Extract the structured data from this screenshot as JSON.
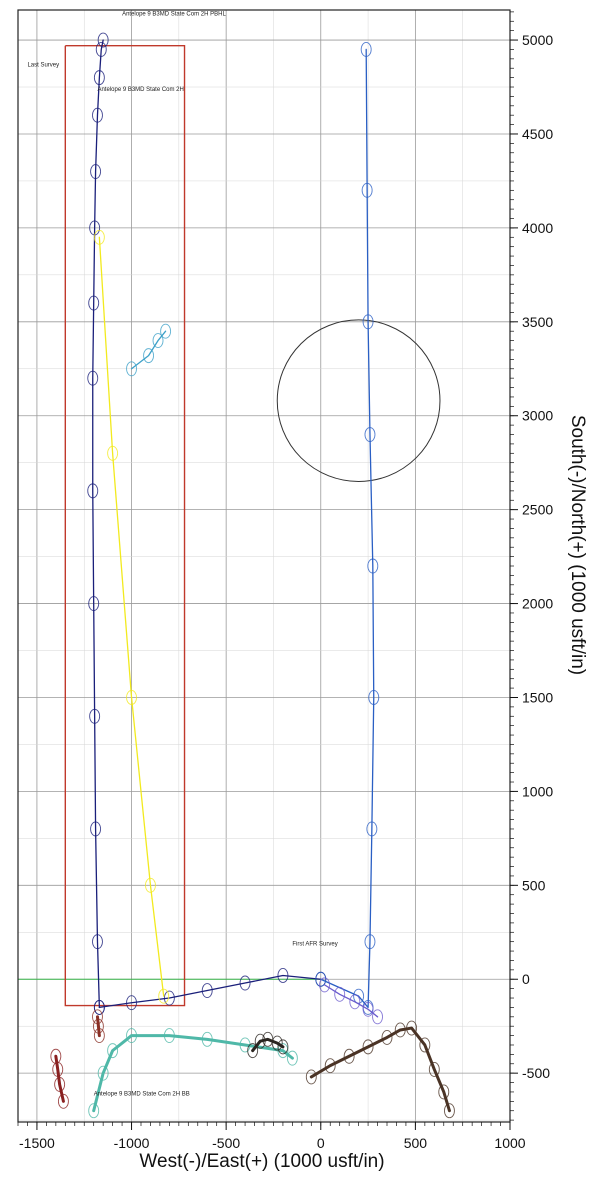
{
  "chart_data": {
    "type": "line",
    "xlabel": "West(-)/East(+) (1000 usft/in)",
    "ylabel": "South(-)/North(+) (1000 usft/in)",
    "xlim": [
      -1600,
      1000
    ],
    "ylim": [
      -760,
      5160
    ],
    "x_ticks": [
      "-1500",
      "-1000",
      "-500",
      "0",
      "500",
      "1000"
    ],
    "x_tick_values": [
      -1500,
      -1000,
      -500,
      0,
      500,
      1000
    ],
    "y_ticks": [
      "5000",
      "4500",
      "4000",
      "3500",
      "3000",
      "2500",
      "2000",
      "1500",
      "1000",
      "500",
      "0",
      "-500"
    ],
    "y_tick_values": [
      5000,
      4500,
      4000,
      3500,
      3000,
      2500,
      2000,
      1500,
      1000,
      500,
      0,
      -500
    ],
    "grid": true,
    "annotations": [
      {
        "text": "Antelope 9 B3MD State Com 2H PBHL",
        "x": -1050,
        "y": 5130
      },
      {
        "text": "Last Survey",
        "x": -1550,
        "y": 4860
      },
      {
        "text": "Antelope 9 B3MD State Com 2H",
        "x": -1180,
        "y": 4730
      },
      {
        "text": "First AFR Survey",
        "x": -150,
        "y": 180
      },
      {
        "text": "Antelope 9 B3MD State Com 2H BB",
        "x": -1200,
        "y": -620
      }
    ],
    "series": [
      {
        "name": "Antelope 9 B3MD State Com 2H",
        "color": "#1a1f7a",
        "x": [
          -1170,
          -1180,
          -1190,
          -1195,
          -1200,
          -1205,
          -1205,
          -1200,
          -1195,
          -1190,
          -1180,
          -1170,
          -1160,
          -1150
        ],
        "y": [
          -150,
          200,
          800,
          1400,
          2000,
          2600,
          3200,
          3600,
          4000,
          4300,
          4600,
          4800,
          4950,
          5000
        ]
      },
      {
        "color": "#1a1f7a",
        "x": [
          -1170,
          -1000,
          -800,
          -600,
          -400,
          -200,
          0
        ],
        "y": [
          -150,
          -125,
          -100,
          -60,
          -20,
          20,
          0
        ]
      },
      {
        "color": "#f2ea1e",
        "x": [
          -1170,
          -1100,
          -1000,
          -900,
          -830
        ],
        "y": [
          3950,
          2800,
          1500,
          500,
          -90
        ]
      },
      {
        "color": "#3ca0c8",
        "x": [
          -1000,
          -910,
          -860,
          -820
        ],
        "y": [
          3250,
          3320,
          3400,
          3450
        ]
      },
      {
        "color": "#2a5fc4",
        "x": [
          0,
          200,
          250,
          260,
          270,
          280,
          275,
          260,
          250,
          245,
          240
        ],
        "y": [
          0,
          -90,
          -150,
          200,
          800,
          1500,
          2200,
          2900,
          3500,
          4200,
          4950
        ]
      },
      {
        "color": "#6a5acd",
        "x": [
          20,
          100,
          180,
          250,
          300
        ],
        "y": [
          -30,
          -80,
          -120,
          -160,
          -200
        ]
      },
      {
        "color": "#4fb8a8",
        "x": [
          -1200,
          -1150,
          -1100,
          -1000,
          -800,
          -600,
          -400,
          -200,
          -150
        ],
        "y": [
          -700,
          -500,
          -380,
          -300,
          -300,
          -320,
          -350,
          -380,
          -420
        ]
      },
      {
        "color": "#2a2520",
        "x": [
          -360,
          -320,
          -280,
          -230,
          -200
        ],
        "y": [
          -380,
          -330,
          -320,
          -340,
          -360
        ]
      },
      {
        "color": "#4a3325",
        "x": [
          -50,
          50,
          150,
          250,
          350,
          420,
          480,
          550,
          600,
          650,
          680
        ],
        "y": [
          -520,
          -460,
          -410,
          -360,
          -310,
          -270,
          -260,
          -350,
          -480,
          -600,
          -700
        ]
      },
      {
        "color": "#8a2020",
        "x": [
          -1400,
          -1390,
          -1380,
          -1360
        ],
        "y": [
          -410,
          -480,
          -560,
          -650
        ]
      },
      {
        "color": "#8a3025",
        "x": [
          -1180,
          -1175,
          -1170
        ],
        "y": [
          -200,
          -250,
          -300
        ]
      }
    ],
    "lease_boundary": {
      "color": "#c0392b",
      "x": [
        -1350,
        -720,
        -720,
        -1350,
        -1350
      ],
      "y": [
        4970,
        4970,
        -140,
        -140,
        4970
      ]
    },
    "circle": {
      "cx": 200,
      "cy": 3080,
      "r": 430
    }
  }
}
